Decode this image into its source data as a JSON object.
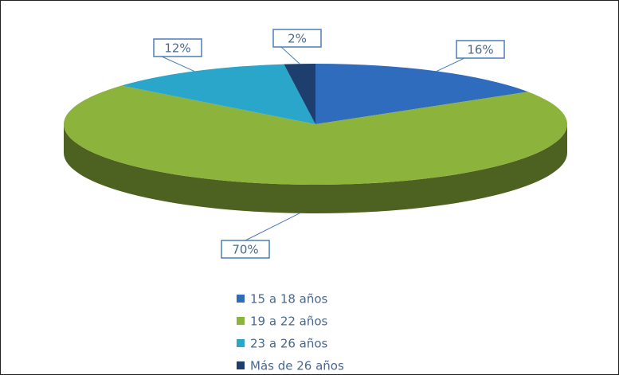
{
  "chart_data": {
    "type": "pie",
    "categories": [
      "15 a 18 años",
      "19 a 22 años",
      "23 a 26 años",
      "Más de 26 años"
    ],
    "values": [
      16,
      70,
      12,
      2
    ],
    "value_labels": [
      "16%",
      "70%",
      "12%",
      "2%"
    ],
    "colors": [
      "#2f6cbd",
      "#8cb33b",
      "#2ba6cb",
      "#1e3f6e"
    ],
    "legend": "bottom"
  }
}
